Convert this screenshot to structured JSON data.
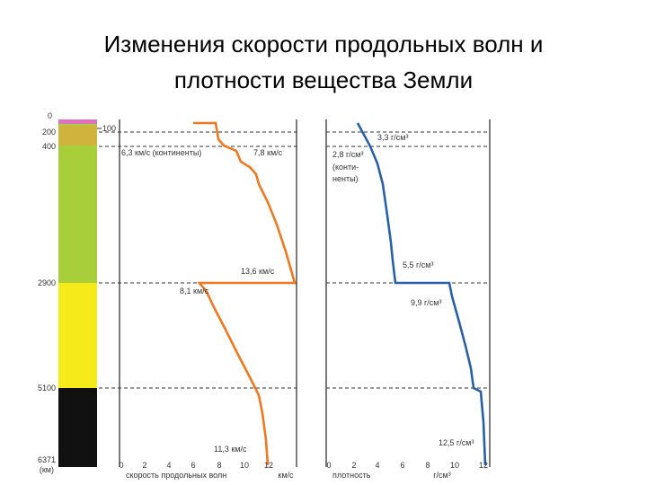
{
  "title": [
    "Изменения скорости продольных волн и",
    "плотности вещества Земли"
  ],
  "depth": {
    "labels": [
      "0",
      "200",
      "400",
      "2900",
      "5100",
      "6371",
      "(км)"
    ],
    "marker": "100"
  },
  "velocity": {
    "ticks": [
      0,
      2,
      4,
      6,
      8,
      10,
      12
    ],
    "unit": "км/с",
    "axis_label": "скорость продольных волн",
    "annotations": [
      "6,3 км/с (континенты)",
      "7,8 км/с",
      "13,6 км/с",
      "8,1 км/с",
      "11,3 км/с"
    ]
  },
  "density": {
    "ticks": [
      0,
      2,
      4,
      6,
      8,
      10,
      12
    ],
    "unit": "г/см³",
    "axis_label": "плотность",
    "annotations": [
      "3,3 г/см³",
      "2,8 г/см³",
      "(конти-",
      "ненты)",
      "5,5 г/см³",
      "9,9 г/см³",
      "12,5 г/см³"
    ]
  }
}
